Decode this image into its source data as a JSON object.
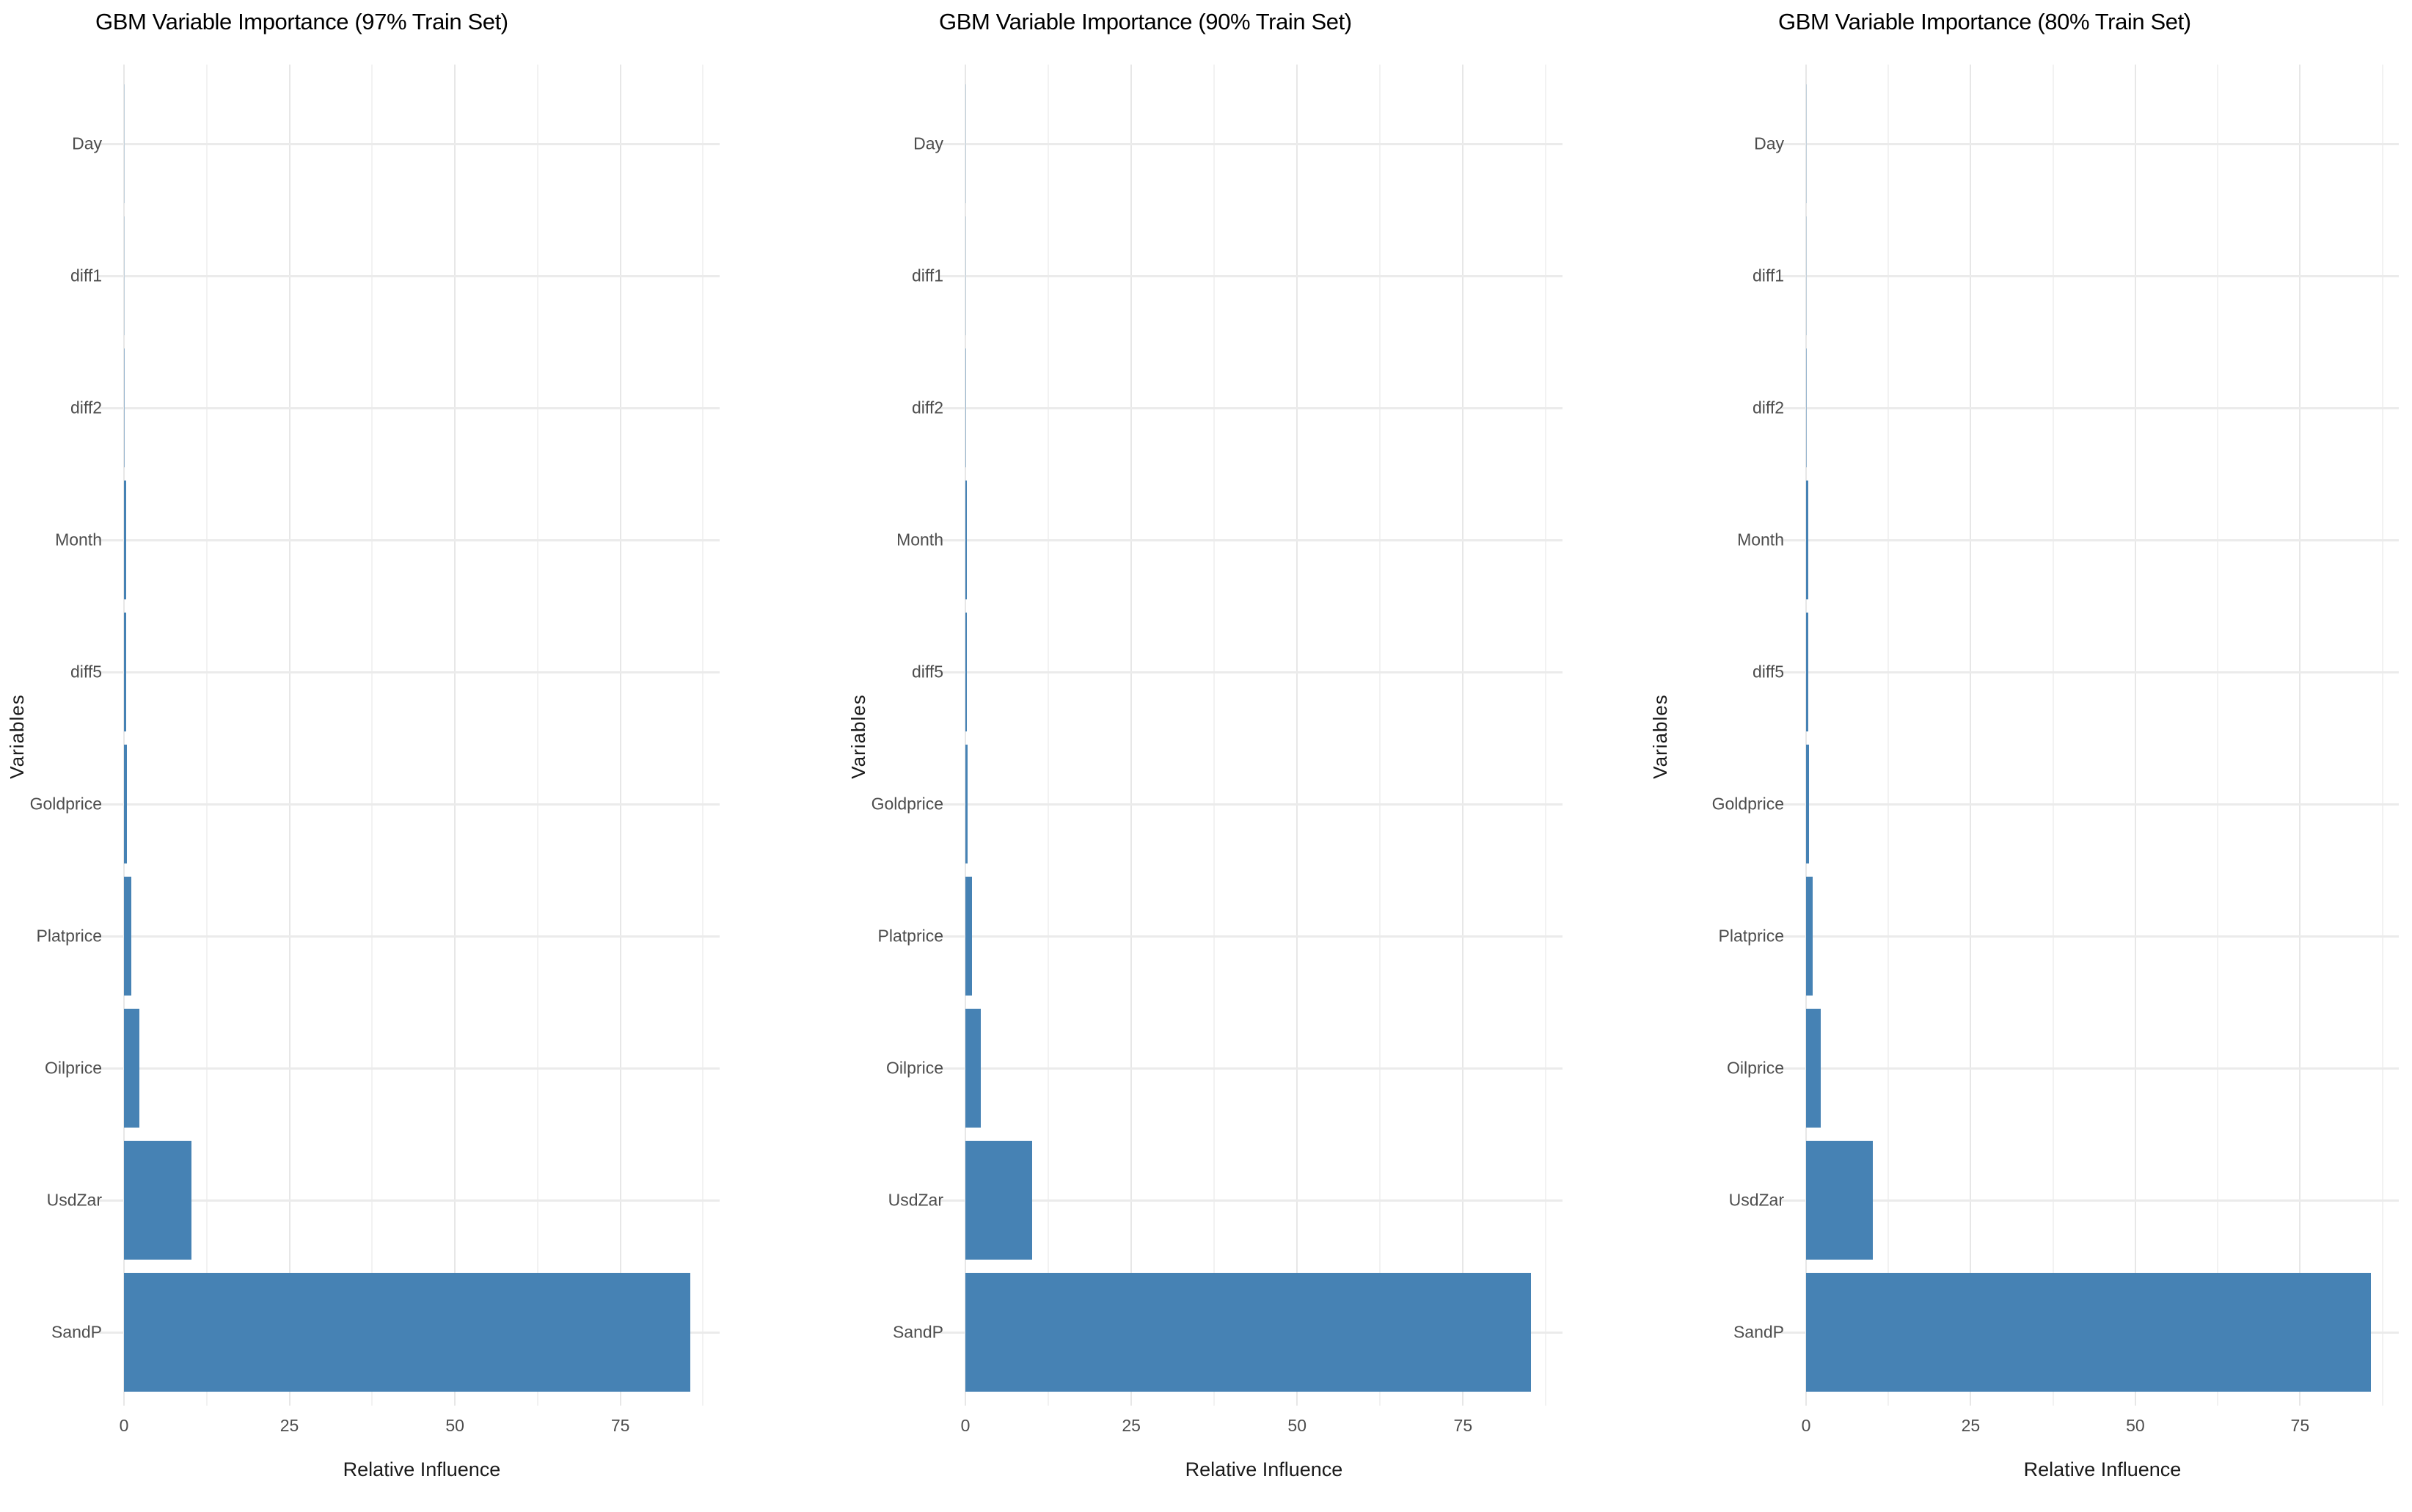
{
  "figure": {
    "background_color": "#ffffff",
    "bar_color": "#4682b4",
    "gridline_color": "#ebebeb",
    "tick_label_color": "#4d4d4d",
    "title_color": "#000000"
  },
  "chart_data": [
    {
      "type": "bar",
      "orientation": "horizontal",
      "title": "GBM Variable Importance (97% Train Set)",
      "xlabel": "Relative Influence",
      "ylabel": "Variables",
      "categories_top_to_bottom": [
        "Day",
        "diff1",
        "diff2",
        "Month",
        "diff5",
        "Goldprice",
        "Platprice",
        "Oilprice",
        "UsdZar",
        "SandP"
      ],
      "values": [
        0.01,
        0.05,
        0.09,
        0.3,
        0.34,
        0.48,
        1.1,
        2.28,
        10.2,
        85.6
      ],
      "x_ticks": [
        0,
        25,
        50,
        75
      ],
      "x_tick_labels": [
        "0",
        "25",
        "50",
        "75"
      ],
      "xlim": [
        0,
        90
      ],
      "grid": true,
      "legend": false
    },
    {
      "type": "bar",
      "orientation": "horizontal",
      "title": "GBM Variable Importance (90% Train Set)",
      "xlabel": "Relative Influence",
      "ylabel": "Variables",
      "categories_top_to_bottom": [
        "Day",
        "diff1",
        "diff2",
        "Month",
        "diff5",
        "Goldprice",
        "Platprice",
        "Oilprice",
        "UsdZar",
        "SandP"
      ],
      "values": [
        0.01,
        0.05,
        0.08,
        0.22,
        0.26,
        0.38,
        1.0,
        2.3,
        10.1,
        85.3
      ],
      "x_ticks": [
        0,
        25,
        50,
        75
      ],
      "x_tick_labels": [
        "0",
        "25",
        "50",
        "75"
      ],
      "xlim": [
        0,
        90
      ],
      "grid": true,
      "legend": false
    },
    {
      "type": "bar",
      "orientation": "horizontal",
      "title": "GBM Variable Importance (80% Train Set)",
      "xlabel": "Relative Influence",
      "ylabel": "Variables",
      "categories_top_to_bottom": [
        "Day",
        "diff1",
        "diff2",
        "Month",
        "diff5",
        "Goldprice",
        "Platprice",
        "Oilprice",
        "UsdZar",
        "SandP"
      ],
      "values": [
        0.01,
        0.05,
        0.08,
        0.28,
        0.3,
        0.44,
        1.0,
        2.27,
        10.13,
        85.8
      ],
      "x_ticks": [
        0,
        25,
        50,
        75
      ],
      "x_tick_labels": [
        "0",
        "25",
        "50",
        "75"
      ],
      "xlim": [
        0,
        90
      ],
      "grid": true,
      "legend": false
    }
  ]
}
